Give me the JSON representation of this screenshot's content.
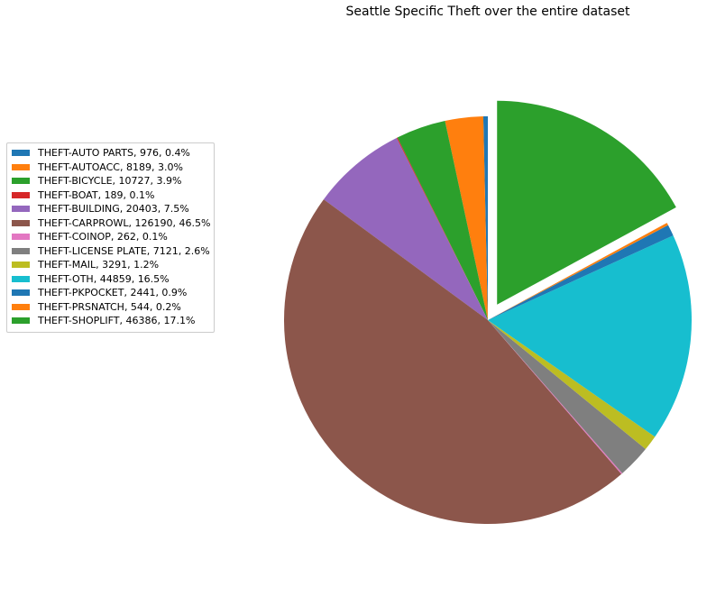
{
  "chart_data": {
    "type": "pie",
    "title": "Seattle Specific Theft over the entire dataset",
    "legend_position": "left",
    "exploded_slice": "THEFT-SHOPLIFT",
    "slices": [
      {
        "label": "THEFT-AUTO PARTS, 976, 0.4%",
        "category": "THEFT-AUTO PARTS",
        "value": 976,
        "percent": 0.4,
        "color": "#1f77b4"
      },
      {
        "label": "THEFT-AUTOACC, 8189, 3.0%",
        "category": "THEFT-AUTOACC",
        "value": 8189,
        "percent": 3.0,
        "color": "#ff7f0e"
      },
      {
        "label": "THEFT-BICYCLE, 10727, 3.9%",
        "category": "THEFT-BICYCLE",
        "value": 10727,
        "percent": 3.9,
        "color": "#2ca02c"
      },
      {
        "label": "THEFT-BOAT, 189, 0.1%",
        "category": "THEFT-BOAT",
        "value": 189,
        "percent": 0.1,
        "color": "#d62728"
      },
      {
        "label": "THEFT-BUILDING, 20403, 7.5%",
        "category": "THEFT-BUILDING",
        "value": 20403,
        "percent": 7.5,
        "color": "#9467bd"
      },
      {
        "label": "THEFT-CARPROWL, 126190, 46.5%",
        "category": "THEFT-CARPROWL",
        "value": 126190,
        "percent": 46.5,
        "color": "#8c564b"
      },
      {
        "label": "THEFT-COINOP, 262, 0.1%",
        "category": "THEFT-COINOP",
        "value": 262,
        "percent": 0.1,
        "color": "#e377c2"
      },
      {
        "label": "THEFT-LICENSE PLATE, 7121, 2.6%",
        "category": "THEFT-LICENSE PLATE",
        "value": 7121,
        "percent": 2.6,
        "color": "#7f7f7f"
      },
      {
        "label": "THEFT-MAIL, 3291, 1.2%",
        "category": "THEFT-MAIL",
        "value": 3291,
        "percent": 1.2,
        "color": "#bcbd22"
      },
      {
        "label": "THEFT-OTH, 44859, 16.5%",
        "category": "THEFT-OTH",
        "value": 44859,
        "percent": 16.5,
        "color": "#17becf"
      },
      {
        "label": "THEFT-PKPOCKET, 2441, 0.9%",
        "category": "THEFT-PKPOCKET",
        "value": 2441,
        "percent": 0.9,
        "color": "#1f77b4"
      },
      {
        "label": "THEFT-PRSNATCH, 544, 0.2%",
        "category": "THEFT-PRSNATCH",
        "value": 544,
        "percent": 0.2,
        "color": "#ff7f0e"
      },
      {
        "label": "THEFT-SHOPLIFT, 46386, 17.1%",
        "category": "THEFT-SHOPLIFT",
        "value": 46386,
        "percent": 17.1,
        "color": "#2ca02c"
      }
    ]
  }
}
